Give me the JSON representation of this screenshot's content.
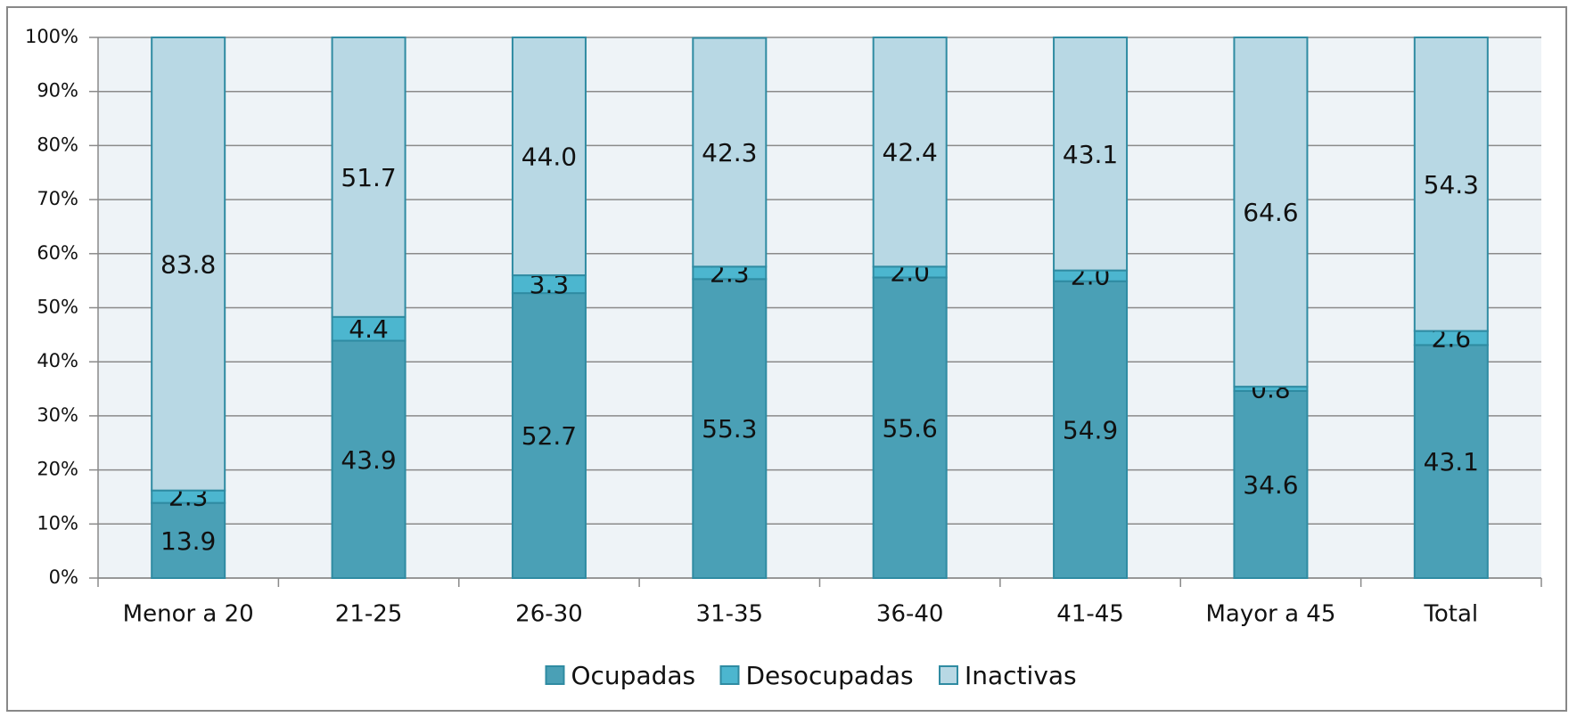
{
  "chart_data": {
    "type": "stacked-bar",
    "categories": [
      "Menor a 20",
      "21-25",
      "26-30",
      "31-35",
      "36-40",
      "41-45",
      "Mayor a 45",
      "Total"
    ],
    "series": [
      {
        "name": "Ocupadas",
        "color": "#4aa0b6",
        "values": [
          13.9,
          43.9,
          52.7,
          55.3,
          55.6,
          54.9,
          34.6,
          43.1
        ],
        "value_labels": [
          "13.9",
          "43.9",
          "52.7",
          "55.3",
          "55.6",
          "54.9",
          "34.6",
          "43.1"
        ]
      },
      {
        "name": "Desocupadas",
        "color": "#4cb6cf",
        "values": [
          2.3,
          4.4,
          3.3,
          2.3,
          2,
          2,
          0.8,
          2.6
        ],
        "value_labels": [
          "2.3",
          "4.4",
          "3.3",
          "2.3",
          "2.0",
          "2.0",
          "0.8",
          "2.6"
        ]
      },
      {
        "name": "Inactivas",
        "color": "#b8d8e4",
        "values": [
          83.8,
          51.7,
          44,
          42.3,
          42.4,
          43.1,
          64.6,
          54.3
        ],
        "value_labels": [
          "83.8",
          "51.7",
          "44.0",
          "42.3",
          "42.4",
          "43.1",
          "64.6",
          "54.3"
        ]
      }
    ],
    "ylim": [
      0,
      100
    ],
    "yticks": [
      {
        "value": 0,
        "label": "0%"
      },
      {
        "value": 10,
        "label": "10%"
      },
      {
        "value": 20,
        "label": "20%"
      },
      {
        "value": 30,
        "label": "30%"
      },
      {
        "value": 40,
        "label": "40%"
      },
      {
        "value": 50,
        "label": "50%"
      },
      {
        "value": 60,
        "label": "60%"
      },
      {
        "value": 70,
        "label": "70%"
      },
      {
        "value": 80,
        "label": "80%"
      },
      {
        "value": 90,
        "label": "90%"
      },
      {
        "value": 100,
        "label": "100%"
      }
    ],
    "grid": true,
    "legend": "bottom"
  }
}
